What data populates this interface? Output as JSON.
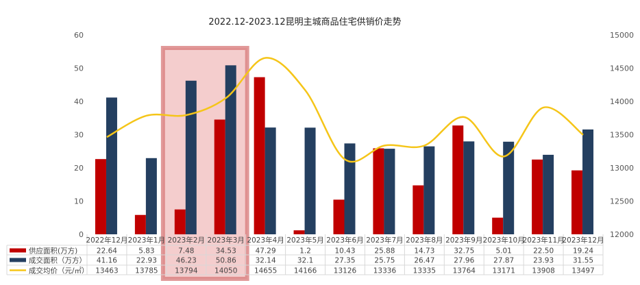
{
  "chart_data": {
    "type": "bar",
    "title": "2022.12-2023.12昆明主城商品住宅供销价走势",
    "categories": [
      "2022年12月",
      "2023年1月",
      "2023年2月",
      "2023年3月",
      "2023年4月",
      "2023年5月",
      "2023年6月",
      "2023年7月",
      "2023年8月",
      "2023年9月",
      "2023年10月",
      "2023年11月",
      "2023年12月"
    ],
    "series": [
      {
        "name": "供应面积(万方)",
        "type": "bar",
        "axis": "left",
        "color": "#c00000",
        "values": [
          22.64,
          5.83,
          7.48,
          34.53,
          47.29,
          1.2,
          10.43,
          25.88,
          14.73,
          32.75,
          5.01,
          22.5,
          19.24
        ],
        "labels": [
          "22.64",
          "5.83",
          "7.48",
          "34.53",
          "47.29",
          "1.2",
          "10.43",
          "25.88",
          "14.73",
          "32.75",
          "5.01",
          "22.50",
          "19.24"
        ]
      },
      {
        "name": "成交面积（万方）",
        "type": "bar",
        "axis": "left",
        "color": "#243f60",
        "values": [
          41.16,
          22.93,
          46.23,
          50.86,
          32.14,
          32.1,
          27.35,
          25.75,
          26.47,
          27.96,
          27.87,
          23.93,
          31.55
        ],
        "labels": [
          "41.16",
          "22.93",
          "46.23",
          "50.86",
          "32.14",
          "32.1",
          "27.35",
          "25.75",
          "26.47",
          "27.96",
          "27.87",
          "23.93",
          "31.55"
        ]
      },
      {
        "name": "成交均价（元/㎡）",
        "type": "line",
        "axis": "right",
        "color": "#f5c518",
        "values": [
          13463,
          13785,
          13794,
          14050,
          14655,
          14166,
          13126,
          13336,
          13335,
          13764,
          13171,
          13908,
          13497
        ],
        "labels": [
          "13463",
          "13785",
          "13794",
          "14050",
          "14655",
          "14166",
          "13126",
          "13336",
          "13335",
          "13764",
          "13171",
          "13908",
          "13497"
        ]
      }
    ],
    "y_left": {
      "range": [
        0,
        60
      ],
      "ticks": [
        "0",
        "10",
        "20",
        "30",
        "40",
        "50",
        "60"
      ]
    },
    "y_right": {
      "range": [
        12000,
        15000
      ],
      "ticks": [
        "12000",
        "12500",
        "13000",
        "13500",
        "14000",
        "14500",
        "15000"
      ]
    },
    "grid": false,
    "legend": "data-table-bottom",
    "highlight": {
      "categories": [
        "2023年2月",
        "2023年3月"
      ],
      "color": "#e8a3a3"
    }
  }
}
